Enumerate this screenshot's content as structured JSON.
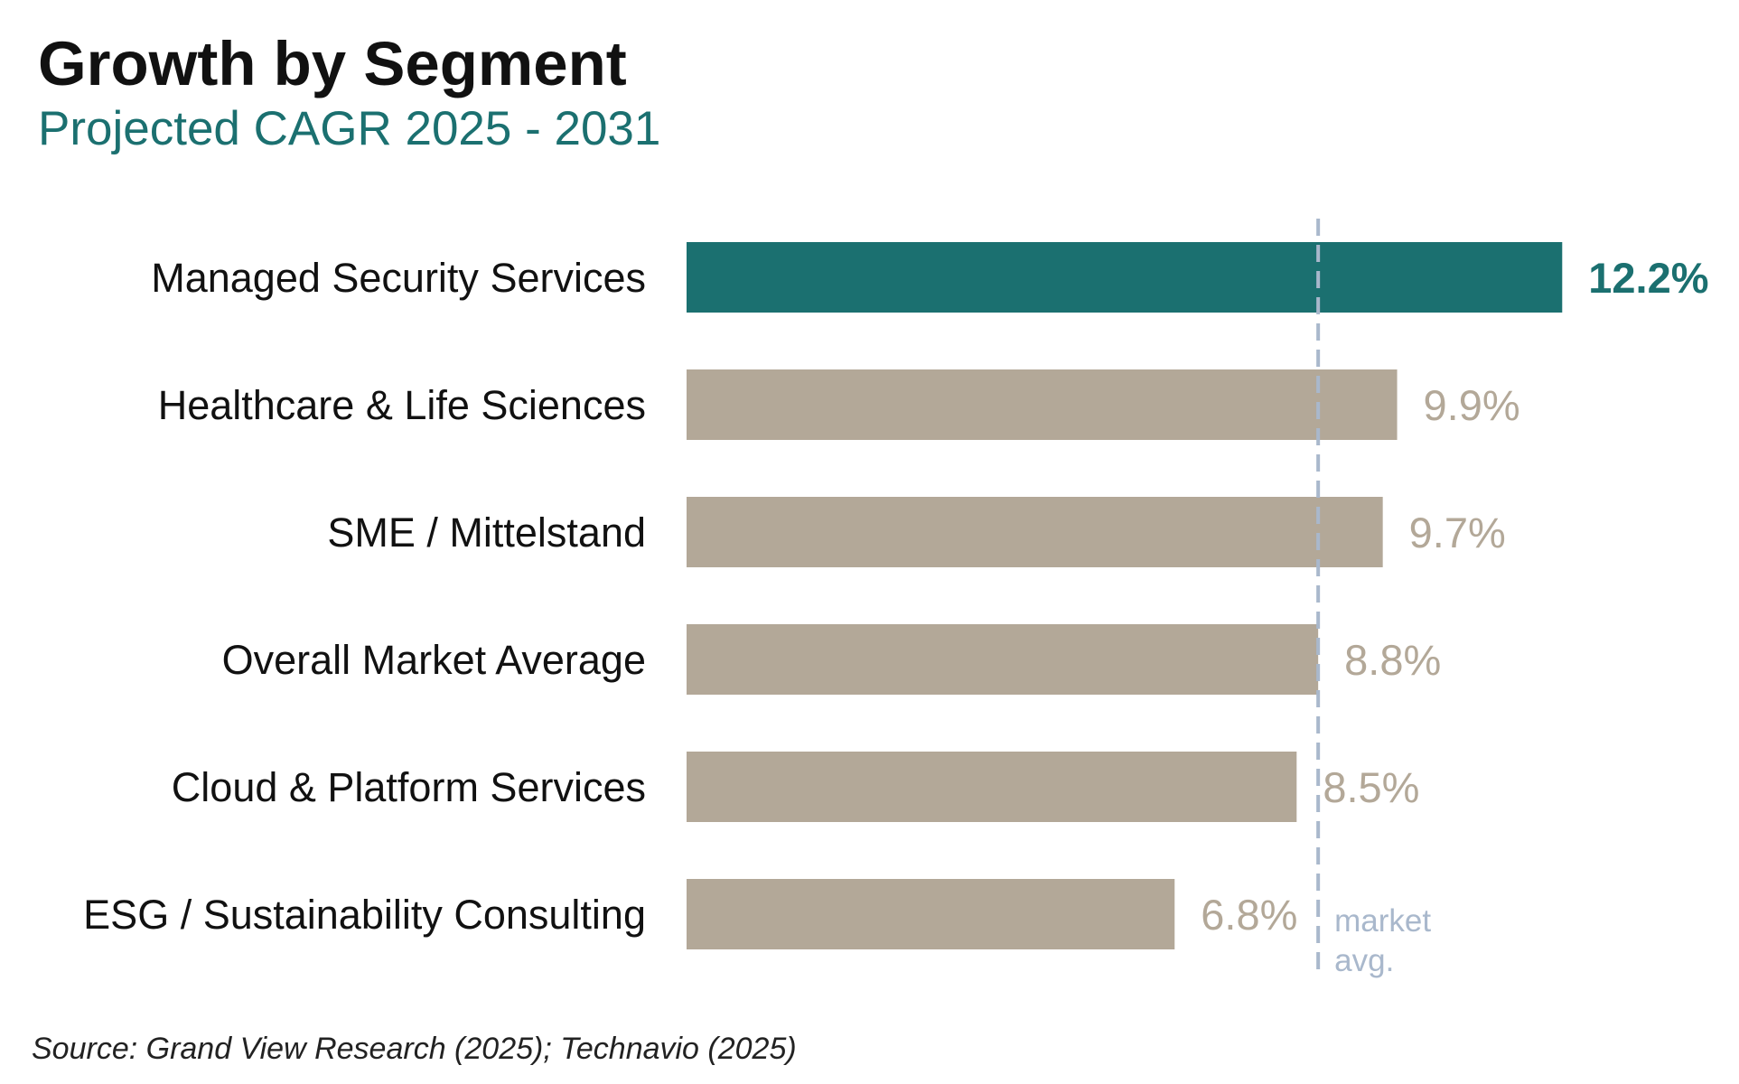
{
  "colors": {
    "accent": "#1b7070",
    "bar": "#b3a898",
    "reference": "#a9b8cc",
    "label": "#111111"
  },
  "chart_data": {
    "type": "bar",
    "orientation": "horizontal",
    "title": "Growth by Segment",
    "subtitle": "Projected CAGR 2025 - 2031",
    "categories": [
      "Managed Security Services",
      "Healthcare & Life Sciences",
      "SME / Mittelstand",
      "Overall Market Average",
      "Cloud & Platform Services",
      "ESG / Sustainability Consulting"
    ],
    "values": [
      12.2,
      9.9,
      9.7,
      8.8,
      8.5,
      6.8
    ],
    "value_labels": [
      "12.2%",
      "9.9%",
      "9.7%",
      "8.8%",
      "8.5%",
      "6.8%"
    ],
    "highlight_index": 0,
    "reference_line": {
      "value": 8.8,
      "label_lines": [
        "market",
        "avg."
      ]
    },
    "xlim": [
      0,
      13
    ],
    "grid": false,
    "source": "Source: Grand View Research (2025); Technavio (2025)"
  }
}
